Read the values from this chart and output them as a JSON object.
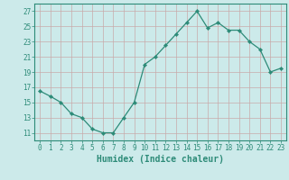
{
  "x": [
    0,
    1,
    2,
    3,
    4,
    5,
    6,
    7,
    8,
    9,
    10,
    11,
    12,
    13,
    14,
    15,
    16,
    17,
    18,
    19,
    20,
    21,
    22,
    23
  ],
  "y": [
    16.5,
    15.8,
    15.0,
    13.5,
    13.0,
    11.5,
    11.0,
    11.0,
    13.0,
    15.0,
    20.0,
    21.0,
    22.5,
    24.0,
    25.5,
    27.0,
    24.8,
    25.5,
    24.5,
    24.5,
    23.0,
    22.0,
    19.0,
    19.5
  ],
  "xlabel": "Humidex (Indice chaleur)",
  "line_color": "#2d8b78",
  "bg_color": "#cceaea",
  "grid_color": "#c8aaaa",
  "ylim": [
    10,
    28
  ],
  "yticks": [
    11,
    13,
    15,
    17,
    19,
    21,
    23,
    25,
    27
  ],
  "xticks": [
    0,
    1,
    2,
    3,
    4,
    5,
    6,
    7,
    8,
    9,
    10,
    11,
    12,
    13,
    14,
    15,
    16,
    17,
    18,
    19,
    20,
    21,
    22,
    23
  ],
  "tick_fontsize": 5.5,
  "xlabel_fontsize": 7.0
}
